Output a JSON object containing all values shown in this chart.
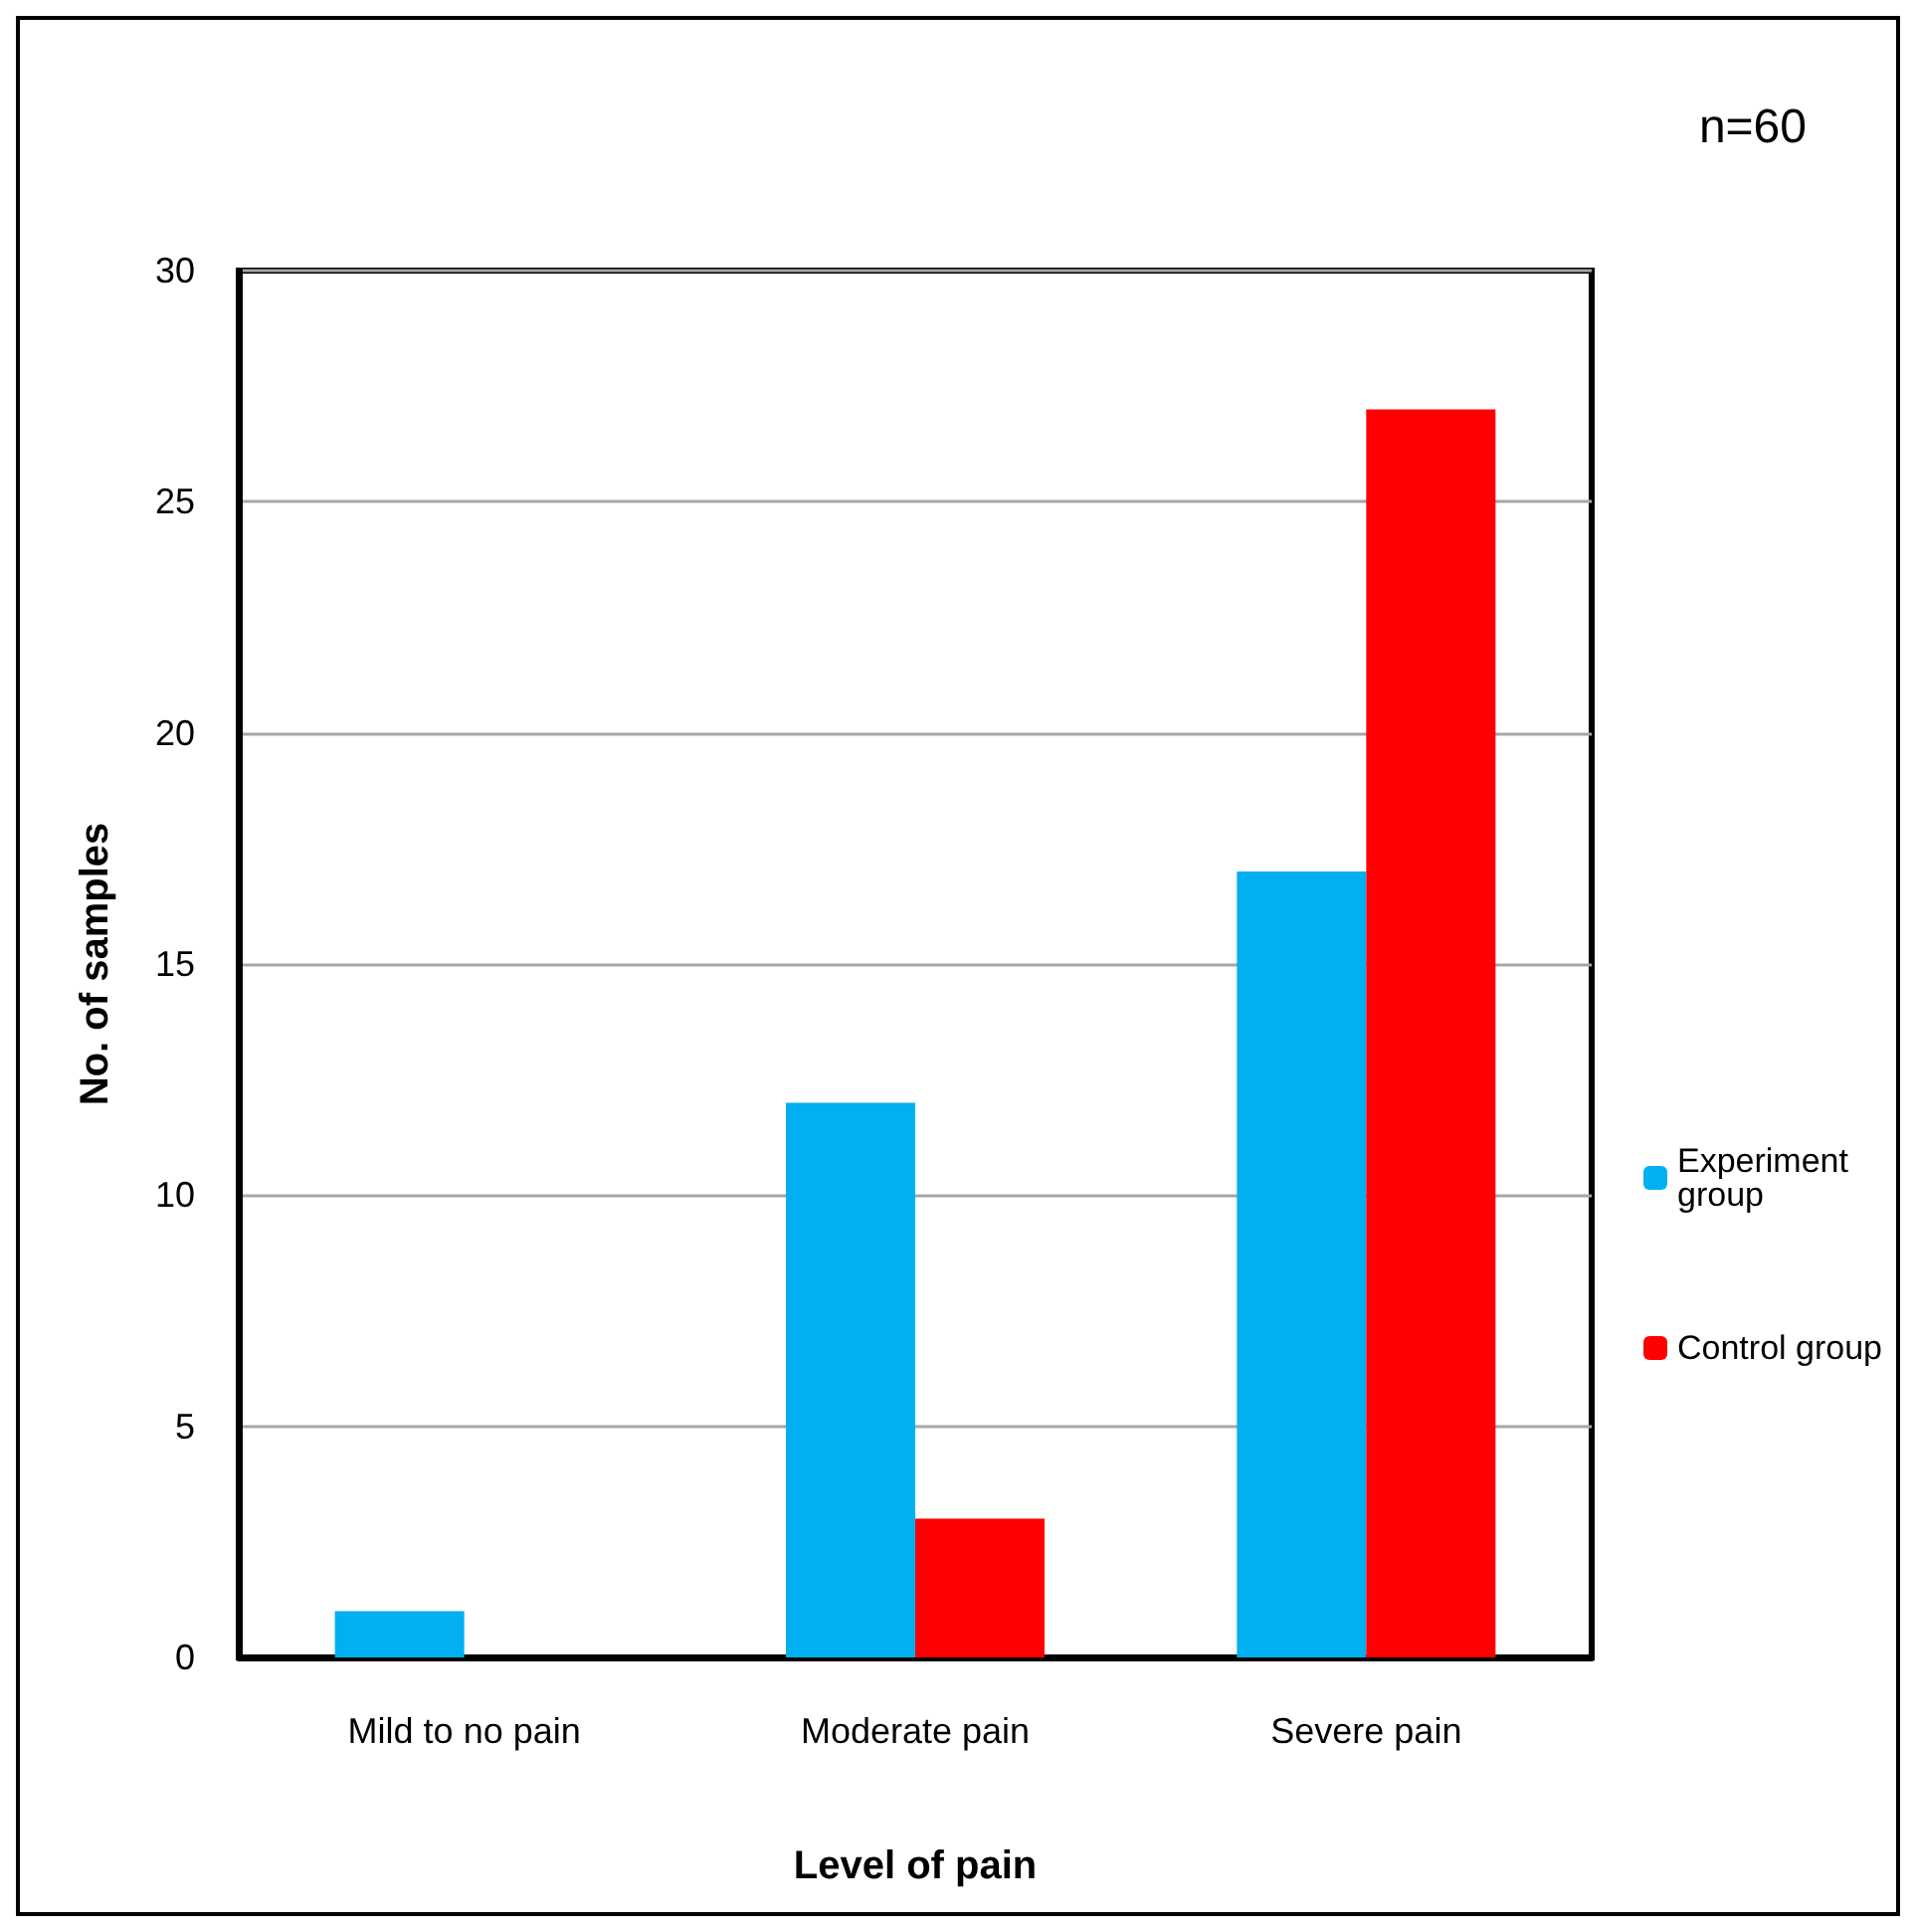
{
  "chart_data": {
    "type": "bar",
    "xlabel": "Level of pain",
    "ylabel": "No. of samples",
    "categories": [
      "Mild to no pain",
      "Moderate pain",
      "Severe pain"
    ],
    "series": [
      {
        "name": "Experiment group",
        "color": "#00b0f0",
        "values": [
          1,
          12,
          17
        ]
      },
      {
        "name": "Control group",
        "color": "#ff0000",
        "values": [
          0,
          3,
          27
        ]
      }
    ],
    "ylim": [
      0,
      30
    ],
    "yticks": [
      0,
      5,
      10,
      15,
      20,
      25,
      30
    ],
    "grid": "y",
    "legend": "right",
    "annotations": [
      "n=60"
    ]
  }
}
